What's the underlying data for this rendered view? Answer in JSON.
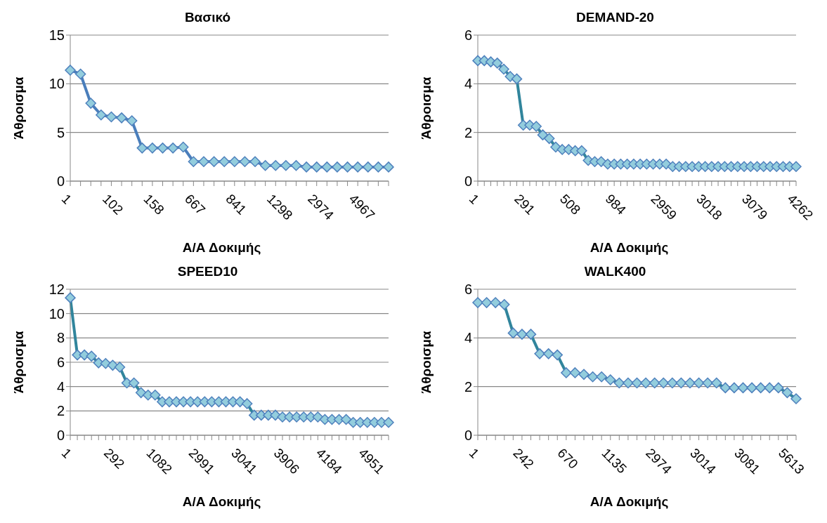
{
  "chart_data": [
    {
      "type": "line",
      "title": "Βασικό",
      "xlabel": "Α/Α Δοκιμής",
      "ylabel": "Άθροισμα",
      "grid": "y",
      "legend": false,
      "marker": "diamond",
      "line_style": "solid",
      "ylim": [
        0,
        15
      ],
      "yticks": [
        0,
        5,
        10,
        15
      ],
      "categories": [
        "1",
        null,
        null,
        null,
        "102",
        null,
        null,
        null,
        "158",
        null,
        null,
        null,
        "667",
        null,
        null,
        null,
        "841",
        null,
        null,
        null,
        "1298",
        null,
        null,
        null,
        "2974",
        null,
        null,
        null,
        "4967",
        null,
        null,
        null
      ],
      "series": [
        {
          "color": "#4a7ebb",
          "values": [
            11.4,
            11.0,
            8.0,
            6.8,
            6.6,
            6.5,
            6.2,
            3.4,
            3.4,
            3.4,
            3.4,
            3.5,
            2.0,
            2.0,
            2.0,
            2.0,
            2.0,
            2.0,
            2.0,
            1.6,
            1.6,
            1.6,
            1.6,
            1.45,
            1.45,
            1.45,
            1.45,
            1.45,
            1.45,
            1.45,
            1.45,
            1.45
          ]
        }
      ]
    },
    {
      "type": "line",
      "title": "DEMAND-20",
      "xlabel": "Α/Α Δοκιμής",
      "ylabel": "Άθροισμα",
      "grid": "y",
      "legend": false,
      "marker": "diamond",
      "line_style": "solid",
      "ylim": [
        0,
        6
      ],
      "yticks": [
        0,
        2,
        4,
        6
      ],
      "categories": [
        "1",
        null,
        null,
        null,
        null,
        null,
        null,
        "291",
        null,
        null,
        null,
        null,
        null,
        null,
        "508",
        null,
        null,
        null,
        null,
        null,
        null,
        "984",
        null,
        null,
        null,
        null,
        null,
        null,
        "2959",
        null,
        null,
        null,
        null,
        null,
        null,
        "3018",
        null,
        null,
        null,
        null,
        null,
        null,
        "3079",
        null,
        null,
        null,
        null,
        null,
        null,
        "4262"
      ],
      "series": [
        {
          "color": "#31859c",
          "values": [
            4.95,
            4.95,
            4.9,
            4.85,
            4.6,
            4.3,
            4.2,
            2.3,
            2.3,
            2.25,
            1.9,
            1.75,
            1.4,
            1.3,
            1.3,
            1.25,
            1.25,
            0.85,
            0.8,
            0.8,
            0.7,
            0.7,
            0.7,
            0.7,
            0.7,
            0.7,
            0.7,
            0.7,
            0.7,
            0.7,
            0.6,
            0.6,
            0.6,
            0.6,
            0.6,
            0.6,
            0.6,
            0.6,
            0.6,
            0.6,
            0.6,
            0.6,
            0.6,
            0.6,
            0.6,
            0.6,
            0.6,
            0.6,
            0.6,
            0.6
          ]
        }
      ]
    },
    {
      "type": "line",
      "title": "SPEED10",
      "xlabel": "Α/Α Δοκιμής",
      "ylabel": "Άθροισμα",
      "grid": "y",
      "legend": false,
      "marker": "diamond",
      "line_style": "solid",
      "ylim": [
        0,
        12
      ],
      "yticks": [
        0,
        2,
        4,
        6,
        8,
        10,
        12
      ],
      "categories": [
        "1",
        null,
        null,
        null,
        null,
        null,
        "292",
        null,
        null,
        null,
        null,
        null,
        "1082",
        null,
        null,
        null,
        null,
        null,
        "2991",
        null,
        null,
        null,
        null,
        null,
        "3041",
        null,
        null,
        null,
        null,
        null,
        "3906",
        null,
        null,
        null,
        null,
        null,
        "4184",
        null,
        null,
        null,
        null,
        null,
        "4951",
        null,
        null,
        null
      ],
      "series": [
        {
          "color": "#31859c",
          "values": [
            11.3,
            6.6,
            6.6,
            6.5,
            5.95,
            5.9,
            5.75,
            5.6,
            4.3,
            4.3,
            3.5,
            3.3,
            3.3,
            2.75,
            2.75,
            2.75,
            2.75,
            2.75,
            2.75,
            2.75,
            2.75,
            2.75,
            2.75,
            2.75,
            2.75,
            2.6,
            1.65,
            1.65,
            1.65,
            1.65,
            1.5,
            1.5,
            1.5,
            1.5,
            1.5,
            1.5,
            1.3,
            1.3,
            1.3,
            1.3,
            1.05,
            1.05,
            1.05,
            1.05,
            1.05,
            1.05
          ]
        }
      ]
    },
    {
      "type": "line",
      "title": "WALK400",
      "xlabel": "Α/Α Δοκιμής",
      "ylabel": "Άθροισμα",
      "grid": "y",
      "legend": false,
      "marker": "diamond",
      "line_style": "solid",
      "ylim": [
        0,
        6
      ],
      "yticks": [
        0,
        2,
        4,
        6
      ],
      "categories": [
        "1",
        null,
        null,
        null,
        null,
        "242",
        null,
        null,
        null,
        null,
        "670",
        null,
        null,
        null,
        null,
        "1135",
        null,
        null,
        null,
        null,
        "2974",
        null,
        null,
        null,
        null,
        "3014",
        null,
        null,
        null,
        null,
        "3081",
        null,
        null,
        null,
        null,
        "5613",
        null
      ],
      "series": [
        {
          "color": "#31859c",
          "values": [
            5.45,
            5.45,
            5.45,
            5.37,
            4.2,
            4.15,
            4.15,
            3.35,
            3.35,
            3.3,
            2.57,
            2.57,
            2.5,
            2.4,
            2.4,
            2.28,
            2.15,
            2.15,
            2.15,
            2.15,
            2.15,
            2.15,
            2.15,
            2.15,
            2.15,
            2.15,
            2.15,
            2.15,
            1.95,
            1.95,
            1.95,
            1.95,
            1.95,
            1.95,
            1.95,
            1.75,
            1.5
          ]
        }
      ]
    }
  ]
}
